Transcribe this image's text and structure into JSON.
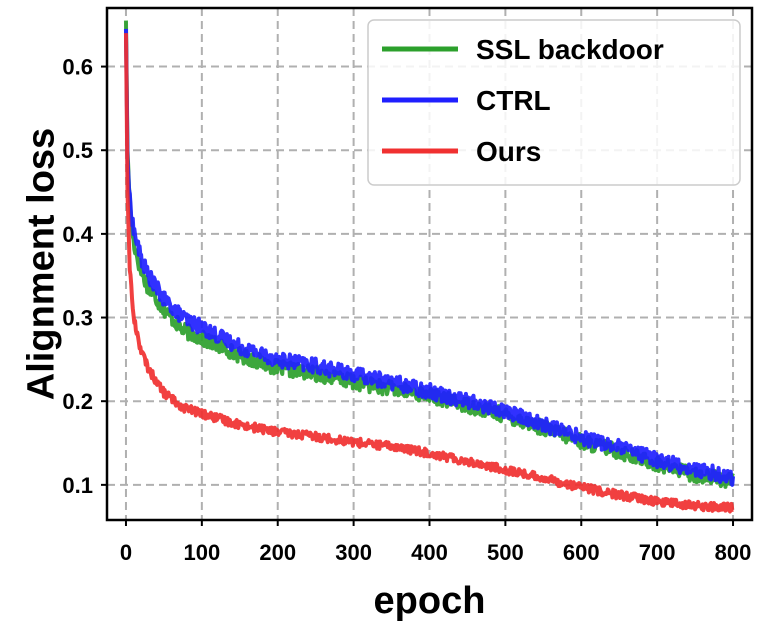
{
  "chart_data": {
    "type": "line",
    "title": "",
    "xlabel": "epoch",
    "ylabel": "Alignment loss",
    "xlim": [
      -25,
      825
    ],
    "ylim": [
      0.058,
      0.67
    ],
    "xticks": [
      0,
      100,
      200,
      300,
      400,
      500,
      600,
      700,
      800
    ],
    "yticks": [
      0.1,
      0.2,
      0.3,
      0.4,
      0.5,
      0.6
    ],
    "grid": true,
    "legend_position": "top-right",
    "series": [
      {
        "name": "SSL backdoor",
        "color": "#2ca02c",
        "noise": 0.009,
        "x": [
          0,
          1,
          2,
          5,
          10,
          20,
          30,
          50,
          75,
          100,
          150,
          200,
          250,
          300,
          350,
          400,
          450,
          500,
          550,
          600,
          650,
          700,
          750,
          780,
          800
        ],
        "values": [
          0.655,
          0.58,
          0.5,
          0.44,
          0.39,
          0.355,
          0.335,
          0.31,
          0.285,
          0.275,
          0.255,
          0.24,
          0.233,
          0.223,
          0.215,
          0.207,
          0.195,
          0.183,
          0.168,
          0.152,
          0.14,
          0.125,
          0.112,
          0.108,
          0.105
        ]
      },
      {
        "name": "CTRL",
        "color": "#1f1fff",
        "noise": 0.009,
        "x": [
          0,
          1,
          2,
          5,
          10,
          20,
          30,
          50,
          75,
          100,
          150,
          200,
          250,
          300,
          350,
          400,
          450,
          500,
          550,
          600,
          650,
          700,
          750,
          780,
          800
        ],
        "values": [
          0.645,
          0.57,
          0.49,
          0.44,
          0.405,
          0.37,
          0.35,
          0.322,
          0.3,
          0.288,
          0.265,
          0.25,
          0.242,
          0.232,
          0.223,
          0.212,
          0.2,
          0.188,
          0.172,
          0.157,
          0.145,
          0.13,
          0.118,
          0.113,
          0.108
        ]
      },
      {
        "name": "Ours",
        "color": "#f03030",
        "noise": 0.005,
        "x": [
          0,
          1,
          2,
          5,
          10,
          20,
          30,
          50,
          75,
          100,
          150,
          200,
          250,
          300,
          350,
          400,
          450,
          500,
          550,
          600,
          650,
          700,
          750,
          780,
          800
        ],
        "values": [
          0.64,
          0.55,
          0.45,
          0.36,
          0.3,
          0.26,
          0.238,
          0.21,
          0.193,
          0.185,
          0.172,
          0.163,
          0.158,
          0.151,
          0.146,
          0.138,
          0.128,
          0.118,
          0.108,
          0.097,
          0.088,
          0.08,
          0.075,
          0.073,
          0.073
        ]
      }
    ]
  }
}
